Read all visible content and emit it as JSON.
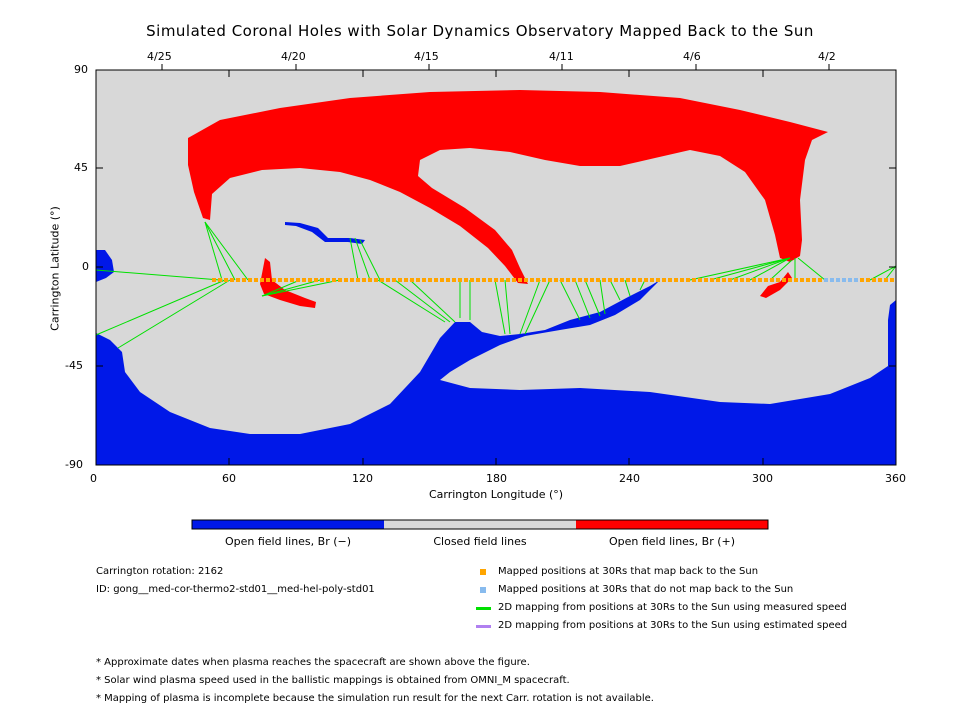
{
  "title": "Simulated Coronal Holes with Solar Dynamics Observatory Mapped Back to the Sun",
  "colors": {
    "open_negative": "#0018e8",
    "closed": "#d8d8d8",
    "open_positive": "#ff0000",
    "mapped_yes": "#ffa500",
    "mapped_no": "#88bbee",
    "measured_speed": "#00e000",
    "estimated_speed": "#b080f0"
  },
  "map": {
    "xlabel": "Carrington Longitude (°)",
    "ylabel": "Carrington Latitude (°)",
    "xticks": [
      "0",
      "60",
      "120",
      "180",
      "240",
      "300",
      "360"
    ],
    "yticks": [
      "90",
      "45",
      "0",
      "-45",
      "-90"
    ],
    "top_dates": [
      "4/25",
      "4/20",
      "4/15",
      "4/11",
      "4/6",
      "4/2"
    ]
  },
  "colorbar": {
    "labels": [
      "Open field lines, Br (−)",
      "Closed field lines",
      "Open field lines, Br (+)"
    ]
  },
  "info": {
    "rotation": "Carrington rotation: 2162",
    "id": "ID: gong__med-cor-thermo2-std01__med-hel-poly-std01"
  },
  "legend": [
    {
      "label": "Mapped positions at 30Rs that map back to the Sun",
      "kind": "square",
      "color": "#ffa500"
    },
    {
      "label": "Mapped positions at 30Rs that do not map back to the Sun",
      "kind": "square",
      "color": "#88bbee"
    },
    {
      "label": "2D mapping from positions at 30Rs to the Sun using measured speed",
      "kind": "line",
      "color": "#00e000"
    },
    {
      "label": "2D mapping from positions at 30Rs to the Sun using estimated speed",
      "kind": "line",
      "color": "#b080f0"
    }
  ],
  "notes": [
    "* Approximate dates when plasma reaches the spacecraft are shown above the figure.",
    "* Solar wind plasma speed used in the ballistic mappings is obtained from OMNI_M spacecraft.",
    "* Mapping of plasma is incomplete because the simulation run result for the next Carr. rotation is not available."
  ]
}
